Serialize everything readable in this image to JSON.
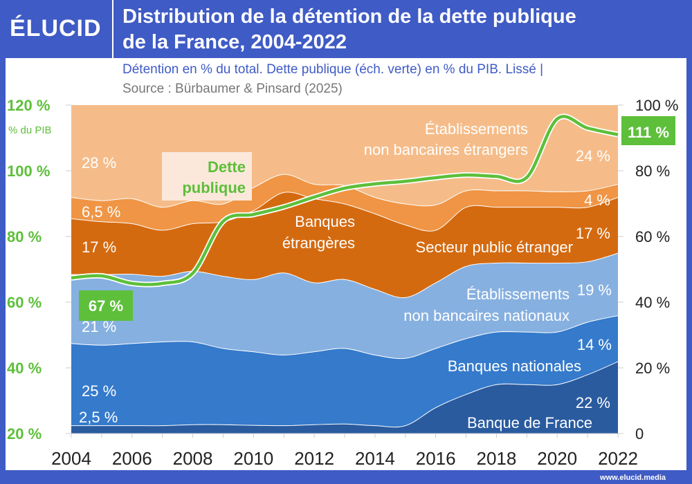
{
  "header": {
    "logo": "ÉLUCID",
    "title_line1": "Distribution de la détention de la dette publique",
    "title_line2": "de la France, 2004-2022"
  },
  "subtitle": "Détention en % du total. Dette publique (éch. verte) en % du PIB. Lissé  |",
  "source": "Source : Bürbaumer & Pinsard (2025)",
  "footer": "www.elucid.media",
  "chart_data": {
    "type": "area",
    "stacked": true,
    "x": [
      2004,
      2005,
      2006,
      2007,
      2008,
      2009,
      2010,
      2011,
      2012,
      2013,
      2014,
      2015,
      2016,
      2017,
      2018,
      2019,
      2020,
      2021,
      2022
    ],
    "x_ticks": [
      "2004",
      "2006",
      "2008",
      "2010",
      "2012",
      "2014",
      "2016",
      "2018",
      "2020",
      "2022"
    ],
    "right_axis": {
      "ticks": [
        "0",
        "20 %",
        "40 %",
        "60 %",
        "80 %",
        "100 %"
      ],
      "range": [
        0,
        100
      ]
    },
    "left_axis": {
      "label": "% du PIB",
      "ticks": [
        "20 %",
        "40 %",
        "60 %",
        "80 %",
        "100 %",
        "120 %"
      ],
      "range": [
        20,
        120
      ]
    },
    "series": [
      {
        "name": "Banque de France",
        "color": "#2a5b9f",
        "label_start": "2,5 %",
        "label_end": "22 %",
        "values": [
          2.5,
          2.5,
          2.5,
          2.5,
          2.8,
          2.8,
          2.6,
          2.5,
          2.8,
          3,
          2.5,
          2.5,
          8,
          12,
          15,
          15,
          15,
          18,
          22
        ]
      },
      {
        "name": "Banques nationales",
        "color": "#357acb",
        "label_start": "25 %",
        "label_end": "14 %",
        "values": [
          25,
          24.5,
          25,
          25.5,
          25.2,
          23.2,
          22.4,
          21.5,
          22.2,
          23,
          21.5,
          20.5,
          18,
          17,
          16,
          16,
          16,
          16,
          14
        ]
      },
      {
        "name": "Établissements non bancaires nationaux",
        "name_l1": "Établissements",
        "name_l2": "non bancaires nationaux",
        "color": "#86b0e0",
        "label_start": "21 %",
        "label_end": "19 %",
        "values": [
          21,
          21.5,
          21.1,
          20,
          21.5,
          22,
          22,
          25,
          21,
          21,
          20,
          18.5,
          20,
          22,
          21,
          21,
          21,
          18.4,
          19
        ]
      },
      {
        "name": "Secteur public étranger",
        "color": "#d46a10",
        "label_start": "17 %",
        "label_end": "17 %",
        "values": [
          17,
          16.1,
          15.4,
          14,
          14.5,
          16.6,
          21,
          24.5,
          25.6,
          23,
          23,
          22.1,
          16,
          18,
          17,
          17,
          17,
          16.6,
          17
        ]
      },
      {
        "name": "Banques étrangères",
        "name_l1": "Banques",
        "name_l2": "étrangères",
        "color": "#ef9545",
        "label_start": "6,5 %",
        "label_end": "4 %",
        "values": [
          6.5,
          6.4,
          7.6,
          7,
          7,
          5.4,
          7,
          5.5,
          4.4,
          5.6,
          5,
          6.4,
          7.7,
          5,
          5,
          5,
          4.7,
          5,
          4
        ]
      },
      {
        "name": "Établissements non bancaires étrangers",
        "name_l1": "Établissements",
        "name_l2": "non bancaires étrangers",
        "color": "#f5bc89",
        "label_start": "28 %",
        "label_end": "24 %",
        "values": [
          28,
          29,
          28.4,
          31,
          29,
          30,
          25,
          21,
          24,
          24.4,
          28,
          30,
          30.3,
          26,
          26,
          26,
          26.3,
          26,
          24
        ]
      }
    ],
    "line": {
      "name_l1": "Dette",
      "name_l2": "publique",
      "color": "#5dbf3a",
      "axis": "left",
      "label_start": "67 %",
      "label_end": "111 %",
      "values": [
        67.4,
        68,
        65.7,
        65.7,
        68.8,
        84.6,
        86.7,
        89,
        92,
        94.7,
        96,
        96.8,
        97.9,
        98.7,
        98.3,
        98,
        115.8,
        113,
        111
      ]
    }
  }
}
